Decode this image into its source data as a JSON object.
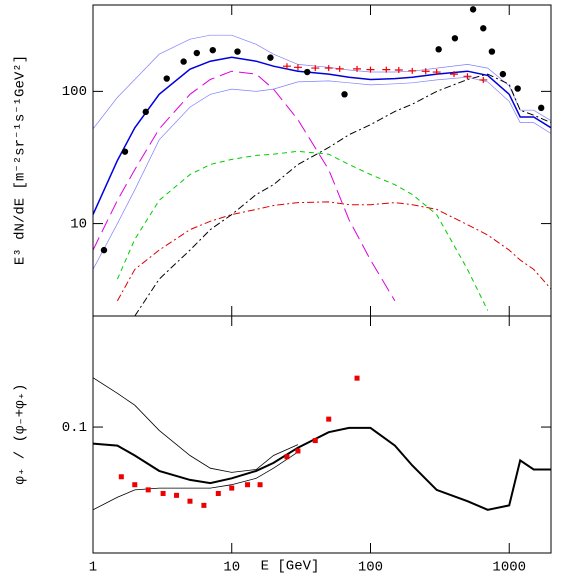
{
  "chart_data": [
    {
      "type": "line",
      "ylabel": "E³ dN/dE [m⁻²sr⁻¹s⁻¹GeV²]",
      "log_x": true,
      "log_y": true,
      "xlim": [
        1,
        2000
      ],
      "xticks": [
        1,
        10,
        100,
        1000
      ],
      "show_xtick_labels": false,
      "ylim": [
        2,
        450
      ],
      "yticks": [
        10,
        100
      ],
      "x": [
        1,
        1.5,
        2,
        3,
        5,
        7,
        10,
        15,
        20,
        30,
        50,
        70,
        100,
        150,
        200,
        300,
        500,
        700,
        1000,
        1200,
        1500,
        2000
      ],
      "series": [
        {
          "color": "#8080ff",
          "width": 0.7,
          "dash": "",
          "values": [
            52,
            90,
            123,
            191,
            248,
            266,
            266,
            227,
            191,
            160,
            152,
            145,
            140,
            140,
            142,
            150,
            160,
            150,
            110,
            72,
            72,
            60
          ]
        },
        {
          "color": "#8080ff",
          "width": 0.7,
          "dash": "",
          "values": [
            4.5,
            10,
            18,
            43,
            76,
            95,
            104,
            100,
            104,
            118,
            120,
            116,
            112,
            114,
            116,
            122,
            128,
            118,
            84,
            58,
            58,
            48
          ]
        },
        {
          "color": "#0000dd",
          "width": 1.5,
          "dash": "",
          "values": [
            11.7,
            30,
            53,
            95,
            147,
            169,
            181,
            169,
            155,
            142,
            135,
            128,
            123,
            125,
            128,
            135,
            142,
            132,
            95,
            64,
            64,
            53
          ]
        },
        {
          "color": "#dd00dd",
          "width": 1,
          "dash": "14,6",
          "values": [
            6.3,
            15,
            25.6,
            52,
            95,
            123,
            142,
            135,
            104,
            61,
            25.6,
            10.7,
            5.3,
            2.6,
            null,
            null,
            null,
            null,
            null,
            null,
            null,
            null
          ]
        },
        {
          "color": "#00cc00",
          "width": 1,
          "dash": "5,4",
          "values": [
            null,
            3.8,
            7.6,
            15,
            23.5,
            28,
            30.6,
            32.8,
            33.5,
            35.2,
            33.5,
            28,
            23.5,
            19.7,
            16.6,
            11.7,
            4.5,
            2.2,
            null,
            null,
            null,
            null
          ]
        },
        {
          "color": "#dd0000",
          "width": 1,
          "dash": "7,3,2,3",
          "values": [
            null,
            2.6,
            4.5,
            6.3,
            9,
            10.4,
            11.7,
            12.8,
            13.7,
            14.4,
            14.6,
            13.9,
            13.9,
            14.4,
            13.9,
            12.8,
            9.8,
            8.2,
            6.3,
            5.3,
            4.5,
            3.2
          ]
        },
        {
          "color": "#000000",
          "width": 1,
          "dash": "7,3,2,3",
          "values": [
            null,
            null,
            2,
            3.8,
            6.3,
            9,
            11.7,
            16.6,
            19.7,
            28,
            37.6,
            47,
            56,
            70.6,
            80,
            100,
            123,
            135,
            113,
            72,
            66,
            58
          ]
        },
        {
          "type": "scatter",
          "color": "#000000",
          "marker": "circle",
          "x": [
            1.2,
            1.7,
            2.4,
            3.4,
            4.5,
            5.6,
            7.3,
            11,
            19,
            35,
            65,
            310,
            406,
            549,
            650,
            750,
            900,
            1150,
            1700
          ],
          "values": [
            6.3,
            35,
            70,
            125,
            168,
            195,
            205,
            200,
            180,
            140,
            95,
            208,
            252,
            417,
            300,
            200,
            135,
            105,
            75
          ]
        },
        {
          "type": "scatter",
          "color": "#ee0000",
          "marker": "cross",
          "x": [
            25,
            30,
            40,
            50,
            60,
            80,
            100,
            130,
            160,
            200,
            250,
            300,
            400,
            500,
            650
          ],
          "values": [
            155,
            152,
            150,
            150,
            148,
            148,
            146,
            146,
            145,
            143,
            142,
            140,
            135,
            130,
            122
          ]
        }
      ]
    },
    {
      "type": "line",
      "ylabel": "φ₊ / (φ₋+φ₊)",
      "xlabel": "E [GeV]",
      "log_x": true,
      "log_y": true,
      "xlim": [
        1,
        2000
      ],
      "xticks": [
        1,
        10,
        100,
        1000
      ],
      "show_xtick_labels": true,
      "ylim": [
        0.022,
        0.38
      ],
      "yticks": [
        0.1
      ],
      "x": [
        1,
        1.5,
        2,
        3,
        5,
        7,
        10,
        15,
        20,
        30,
        50,
        70,
        100,
        150,
        200,
        300,
        500,
        700,
        1000,
        1200,
        1500,
        2000
      ],
      "series": [
        {
          "color": "#000000",
          "width": 0.8,
          "dash": "",
          "values": [
            0.181,
            0.15,
            0.13,
            0.096,
            0.071,
            0.061,
            0.058,
            0.06,
            0.071,
            0.081,
            null,
            null,
            null,
            null,
            null,
            null,
            null,
            null,
            null,
            null,
            null,
            null
          ]
        },
        {
          "color": "#000000",
          "width": 0.8,
          "dash": "",
          "values": [
            0.037,
            0.043,
            0.047,
            0.048,
            0.048,
            0.048,
            0.05,
            0.054,
            0.061,
            0.074,
            null,
            null,
            null,
            null,
            null,
            null,
            null,
            null,
            null,
            null,
            null,
            null
          ]
        },
        {
          "color": "#000000",
          "width": 2,
          "dash": "",
          "values": [
            0.082,
            0.08,
            0.071,
            0.059,
            0.053,
            0.051,
            0.054,
            0.059,
            0.065,
            0.078,
            0.094,
            0.099,
            0.099,
            0.08,
            0.063,
            0.047,
            0.041,
            0.037,
            0.039,
            0.067,
            0.06,
            0.06
          ]
        },
        {
          "type": "scatter",
          "color": "#ee0000",
          "marker": "square",
          "x": [
            1.6,
            2,
            2.5,
            3.2,
            4,
            5,
            6.3,
            8,
            10,
            13,
            16,
            25,
            30,
            40,
            50,
            80
          ],
          "values": [
            0.055,
            0.05,
            0.047,
            0.045,
            0.044,
            0.041,
            0.039,
            0.045,
            0.048,
            0.05,
            0.05,
            0.07,
            0.075,
            0.085,
            0.11,
            0.18
          ]
        }
      ]
    }
  ]
}
